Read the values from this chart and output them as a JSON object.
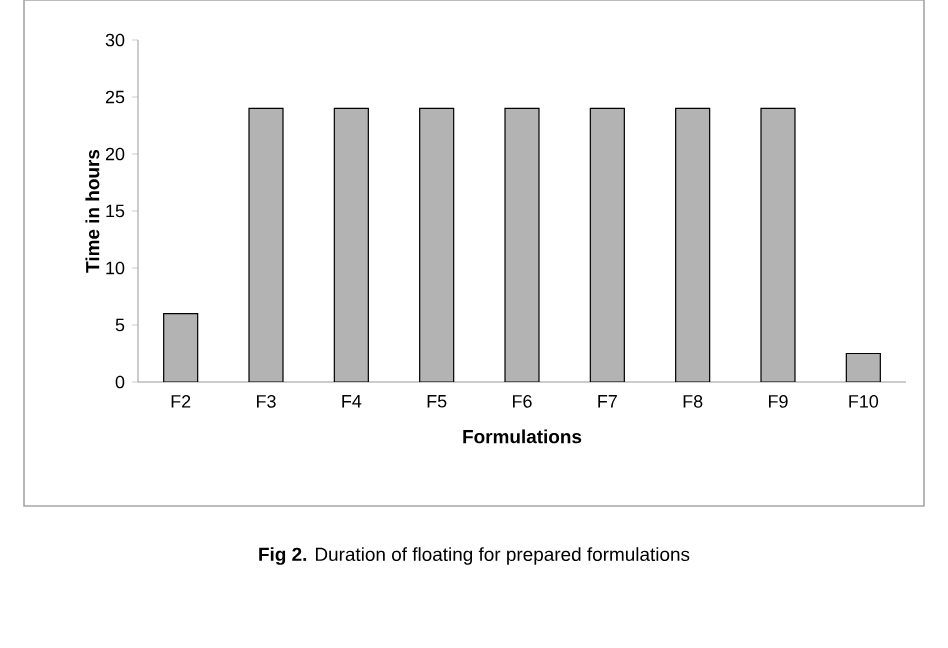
{
  "chart_data": {
    "type": "bar",
    "xlabel": "Formulations",
    "ylabel": "Time in hours",
    "categories": [
      "F2",
      "F3",
      "F4",
      "F5",
      "F6",
      "F7",
      "F8",
      "F9",
      "F10"
    ],
    "values": [
      6,
      24,
      24,
      24,
      24,
      24,
      24,
      24,
      2.5
    ],
    "color": "#b3b3b3",
    "ylim": [
      0,
      30
    ],
    "yticks": [
      0,
      5,
      10,
      15,
      20,
      25,
      30
    ],
    "annotations": [
      "**Fig 2.** Duration of floating for prepared formulations"
    ]
  }
}
